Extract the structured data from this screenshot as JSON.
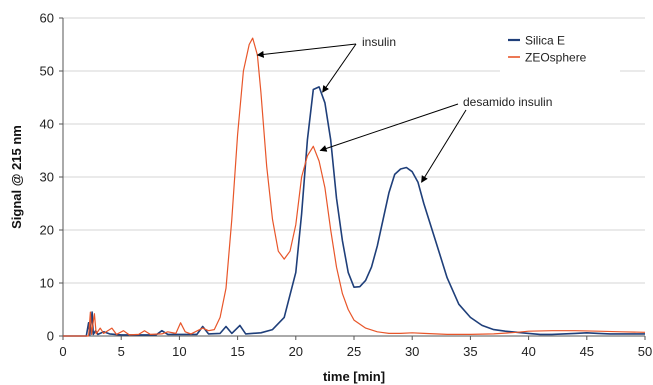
{
  "chart_data": {
    "type": "line",
    "xlabel": "time [min]",
    "ylabel": "Signal @ 215 nm",
    "xlim": [
      0,
      50
    ],
    "ylim": [
      0,
      60
    ],
    "xticks": [
      0,
      5,
      10,
      15,
      20,
      25,
      30,
      35,
      40,
      45,
      50
    ],
    "yticks": [
      0,
      10,
      20,
      30,
      40,
      50,
      60
    ],
    "grid": "horizontal",
    "legend_position": "top-right",
    "series": [
      {
        "name": "Silica E",
        "color": "#1f3f7a",
        "points": [
          [
            0,
            0
          ],
          [
            2.0,
            0
          ],
          [
            2.2,
            2.5
          ],
          [
            2.3,
            0.2
          ],
          [
            2.5,
            4.5
          ],
          [
            2.6,
            0.3
          ],
          [
            2.8,
            1.0
          ],
          [
            3.0,
            0.3
          ],
          [
            3.5,
            0.8
          ],
          [
            4,
            0.4
          ],
          [
            5,
            0.2
          ],
          [
            8,
            0.2
          ],
          [
            8.5,
            1.0
          ],
          [
            9,
            0.3
          ],
          [
            11.5,
            0.3
          ],
          [
            12,
            1.8
          ],
          [
            12.5,
            0.4
          ],
          [
            13.5,
            0.5
          ],
          [
            14,
            1.8
          ],
          [
            14.5,
            0.5
          ],
          [
            15.2,
            2.0
          ],
          [
            15.7,
            0.4
          ],
          [
            17,
            0.6
          ],
          [
            18,
            1.2
          ],
          [
            19,
            3.5
          ],
          [
            20,
            12
          ],
          [
            20.5,
            23
          ],
          [
            21,
            37
          ],
          [
            21.5,
            46.5
          ],
          [
            22,
            47
          ],
          [
            22.5,
            44
          ],
          [
            23,
            37
          ],
          [
            23.5,
            26
          ],
          [
            24,
            18
          ],
          [
            24.5,
            12
          ],
          [
            25,
            9.2
          ],
          [
            25.5,
            9.3
          ],
          [
            26,
            10.5
          ],
          [
            26.5,
            13
          ],
          [
            27,
            17
          ],
          [
            27.5,
            22
          ],
          [
            28,
            27
          ],
          [
            28.5,
            30.5
          ],
          [
            29,
            31.5
          ],
          [
            29.5,
            31.8
          ],
          [
            30,
            31.0
          ],
          [
            30.5,
            29
          ],
          [
            31,
            25
          ],
          [
            32,
            18
          ],
          [
            33,
            11
          ],
          [
            34,
            6
          ],
          [
            35,
            3.5
          ],
          [
            36,
            2
          ],
          [
            37,
            1.2
          ],
          [
            38,
            0.9
          ],
          [
            39,
            0.7
          ],
          [
            40,
            0.5
          ],
          [
            41,
            0.3
          ],
          [
            42,
            0.3
          ],
          [
            43,
            0.4
          ],
          [
            44,
            0.5
          ],
          [
            45,
            0.6
          ],
          [
            46,
            0.5
          ],
          [
            47,
            0.4
          ],
          [
            48,
            0.4
          ],
          [
            50,
            0.4
          ]
        ]
      },
      {
        "name": "ZEOsphere",
        "color": "#e8562a",
        "points": [
          [
            0,
            0
          ],
          [
            2.2,
            0
          ],
          [
            2.35,
            4.5
          ],
          [
            2.45,
            0.3
          ],
          [
            2.7,
            4.2
          ],
          [
            2.85,
            0.4
          ],
          [
            3.2,
            1.5
          ],
          [
            3.5,
            0.5
          ],
          [
            4.2,
            1.5
          ],
          [
            4.6,
            0.3
          ],
          [
            5.2,
            1.0
          ],
          [
            5.7,
            0.2
          ],
          [
            6.5,
            0.3
          ],
          [
            7.0,
            1.0
          ],
          [
            7.5,
            0.3
          ],
          [
            8.5,
            0.4
          ],
          [
            9,
            0.8
          ],
          [
            9.7,
            0.5
          ],
          [
            10.1,
            2.5
          ],
          [
            10.5,
            0.8
          ],
          [
            11,
            0.4
          ],
          [
            12,
            1.5
          ],
          [
            12.5,
            1.0
          ],
          [
            13,
            1.2
          ],
          [
            13.5,
            3.5
          ],
          [
            14,
            9
          ],
          [
            14.5,
            22
          ],
          [
            15,
            38
          ],
          [
            15.5,
            50
          ],
          [
            16,
            55
          ],
          [
            16.3,
            56.2
          ],
          [
            16.7,
            53
          ],
          [
            17,
            46
          ],
          [
            17.5,
            32
          ],
          [
            18,
            22
          ],
          [
            18.5,
            16
          ],
          [
            19,
            14.5
          ],
          [
            19.5,
            16
          ],
          [
            20,
            21
          ],
          [
            20.5,
            30
          ],
          [
            21,
            34
          ],
          [
            21.5,
            35.8
          ],
          [
            22,
            33
          ],
          [
            22.5,
            28
          ],
          [
            23,
            20
          ],
          [
            23.5,
            13
          ],
          [
            24,
            8
          ],
          [
            24.5,
            5
          ],
          [
            25,
            3
          ],
          [
            26,
            1.5
          ],
          [
            27,
            0.8
          ],
          [
            28,
            0.5
          ],
          [
            29,
            0.5
          ],
          [
            30,
            0.6
          ],
          [
            31,
            0.5
          ],
          [
            32,
            0.4
          ],
          [
            33,
            0.3
          ],
          [
            35,
            0.3
          ],
          [
            37,
            0.4
          ],
          [
            39,
            0.7
          ],
          [
            40,
            0.9
          ],
          [
            42,
            1.0
          ],
          [
            44,
            1.0
          ],
          [
            46,
            0.9
          ],
          [
            48,
            0.8
          ],
          [
            50,
            0.7
          ]
        ]
      }
    ],
    "annotations": [
      {
        "text": "insulin",
        "arrows": [
          [
            16.7,
            53
          ],
          [
            22.3,
            46
          ]
        ]
      },
      {
        "text": "desamido insulin",
        "arrows": [
          [
            22.1,
            35
          ],
          [
            30.8,
            29
          ]
        ]
      }
    ]
  }
}
